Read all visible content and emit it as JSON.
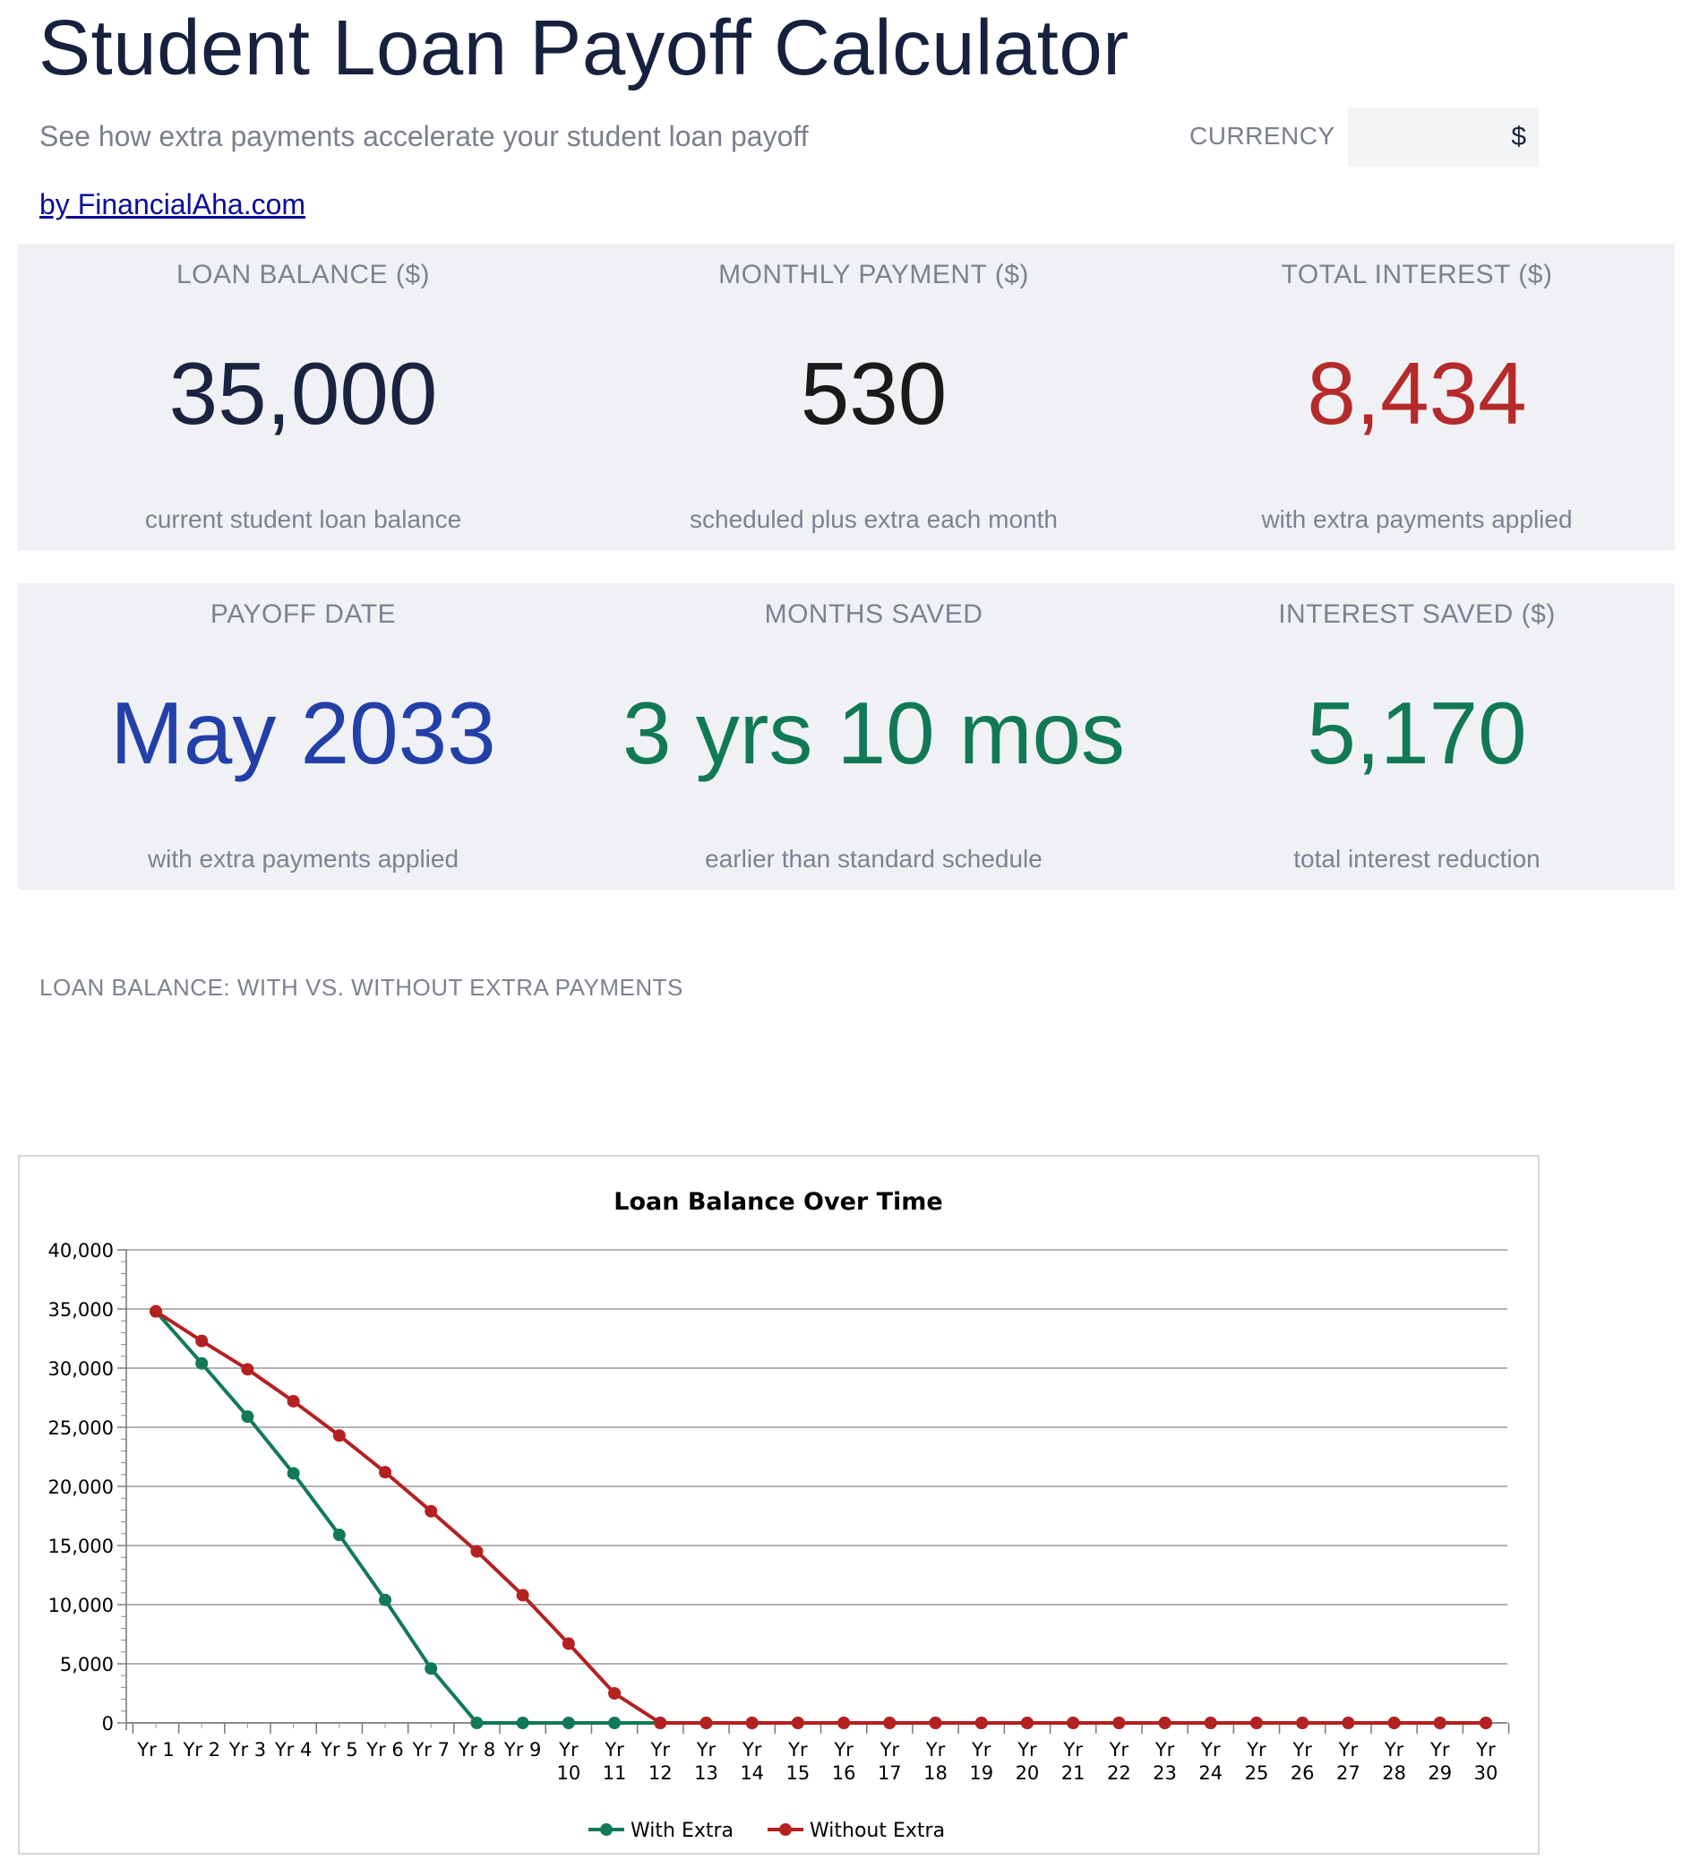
{
  "header": {
    "title": "Student Loan Payoff Calculator",
    "subtitle": "See how extra payments accelerate your student loan payoff",
    "byline": "by FinancialAha.com",
    "currency_label": "CURRENCY",
    "currency_value": "$"
  },
  "stats": [
    {
      "label": "LOAN BALANCE ($)",
      "value": "35,000",
      "note": "current student loan balance",
      "color": "#1a2340"
    },
    {
      "label": "MONTHLY PAYMENT ($)",
      "value": "530",
      "note": "scheduled plus extra each month",
      "color": "#1a1a1a"
    },
    {
      "label": "TOTAL INTEREST ($)",
      "value": "8,434",
      "note": "with extra payments applied",
      "color": "#b52a2a"
    },
    {
      "label": "PAYOFF DATE",
      "value": "May 2033",
      "note": "with extra payments applied",
      "color": "#2340a8"
    },
    {
      "label": "MONTHS SAVED",
      "value": "3 yrs 10 mos",
      "note": "earlier than standard schedule",
      "color": "#117a55"
    },
    {
      "label": "INTEREST SAVED ($)",
      "value": "5,170",
      "note": "total interest reduction",
      "color": "#117a55"
    }
  ],
  "section_title": "LOAN BALANCE: WITH VS. WITHOUT EXTRA PAYMENTS",
  "chart_data": {
    "type": "line",
    "title": "Loan Balance Over Time",
    "xlabel": "",
    "ylabel": "",
    "ylim": [
      0,
      40000
    ],
    "yticks": [
      0,
      5000,
      10000,
      15000,
      20000,
      25000,
      30000,
      35000,
      40000
    ],
    "ytick_labels": [
      "0",
      "5,000",
      "10,000",
      "15,000",
      "20,000",
      "25,000",
      "30,000",
      "35,000",
      "40,000"
    ],
    "grid": true,
    "legend_position": "bottom",
    "categories": [
      "Yr 1",
      "Yr 2",
      "Yr 3",
      "Yr 4",
      "Yr 5",
      "Yr 6",
      "Yr 7",
      "Yr 8",
      "Yr 9",
      "Yr 10",
      "Yr 11",
      "Yr 12",
      "Yr 13",
      "Yr 14",
      "Yr 15",
      "Yr 16",
      "Yr 17",
      "Yr 18",
      "Yr 19",
      "Yr 20",
      "Yr 21",
      "Yr 22",
      "Yr 23",
      "Yr 24",
      "Yr 25",
      "Yr 26",
      "Yr 27",
      "Yr 28",
      "Yr 29",
      "Yr 30"
    ],
    "series": [
      {
        "name": "With Extra",
        "color": "#117a55",
        "values": [
          34800,
          30400,
          25900,
          21100,
          15900,
          10400,
          4600,
          0,
          0,
          0,
          0,
          0,
          0,
          0,
          0,
          0,
          0,
          0,
          0,
          0,
          0,
          0,
          0,
          0,
          0,
          0,
          0,
          0,
          0,
          0
        ]
      },
      {
        "name": "Without Extra",
        "color": "#b52020",
        "values": [
          34800,
          32300,
          29900,
          27200,
          24300,
          21200,
          17900,
          14500,
          10800,
          6700,
          2500,
          0,
          0,
          0,
          0,
          0,
          0,
          0,
          0,
          0,
          0,
          0,
          0,
          0,
          0,
          0,
          0,
          0,
          0,
          0
        ]
      }
    ]
  }
}
